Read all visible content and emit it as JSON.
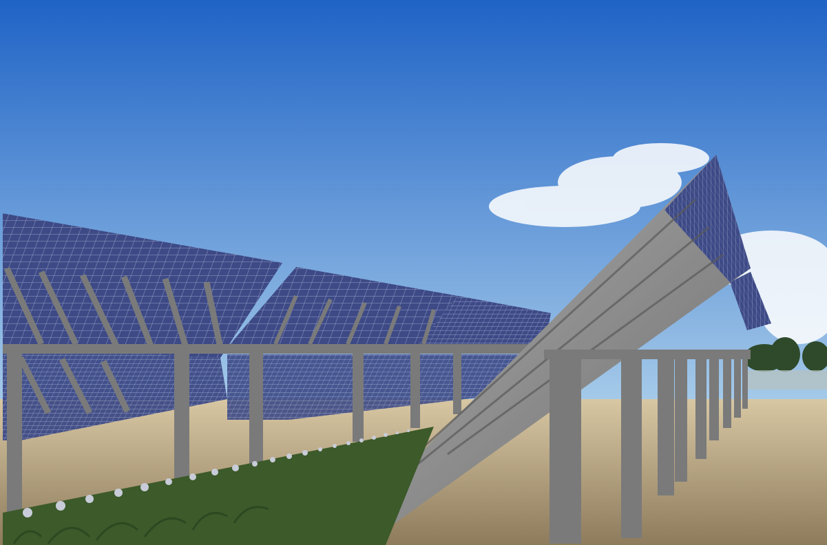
{
  "scene": {
    "subject": "agrivoltaic-solar-tracker-field",
    "colors": {
      "frame_accent": "#1aa36b",
      "sky_top": "#1f63c6",
      "sky_bottom": "#a9cdea",
      "ground": "#c8b28c",
      "ground_dark": "#8d7b5c",
      "panel": "#3d4a86",
      "panel_cell_line": "#9aa3c8",
      "panel_back": "#8e8e8e",
      "steel": "#7a7a7a",
      "steel_dark": "#4f4f4f",
      "crop_leaf": "#3c5a2a",
      "crop_flower": "#c8ccd8",
      "tree": "#2f4a2a",
      "fence": "#9aa6a0"
    },
    "icons": [
      "solar-panel-icon",
      "support-post-icon",
      "crop-plant-icon",
      "cloud-icon",
      "tree-icon",
      "fence-icon"
    ]
  }
}
